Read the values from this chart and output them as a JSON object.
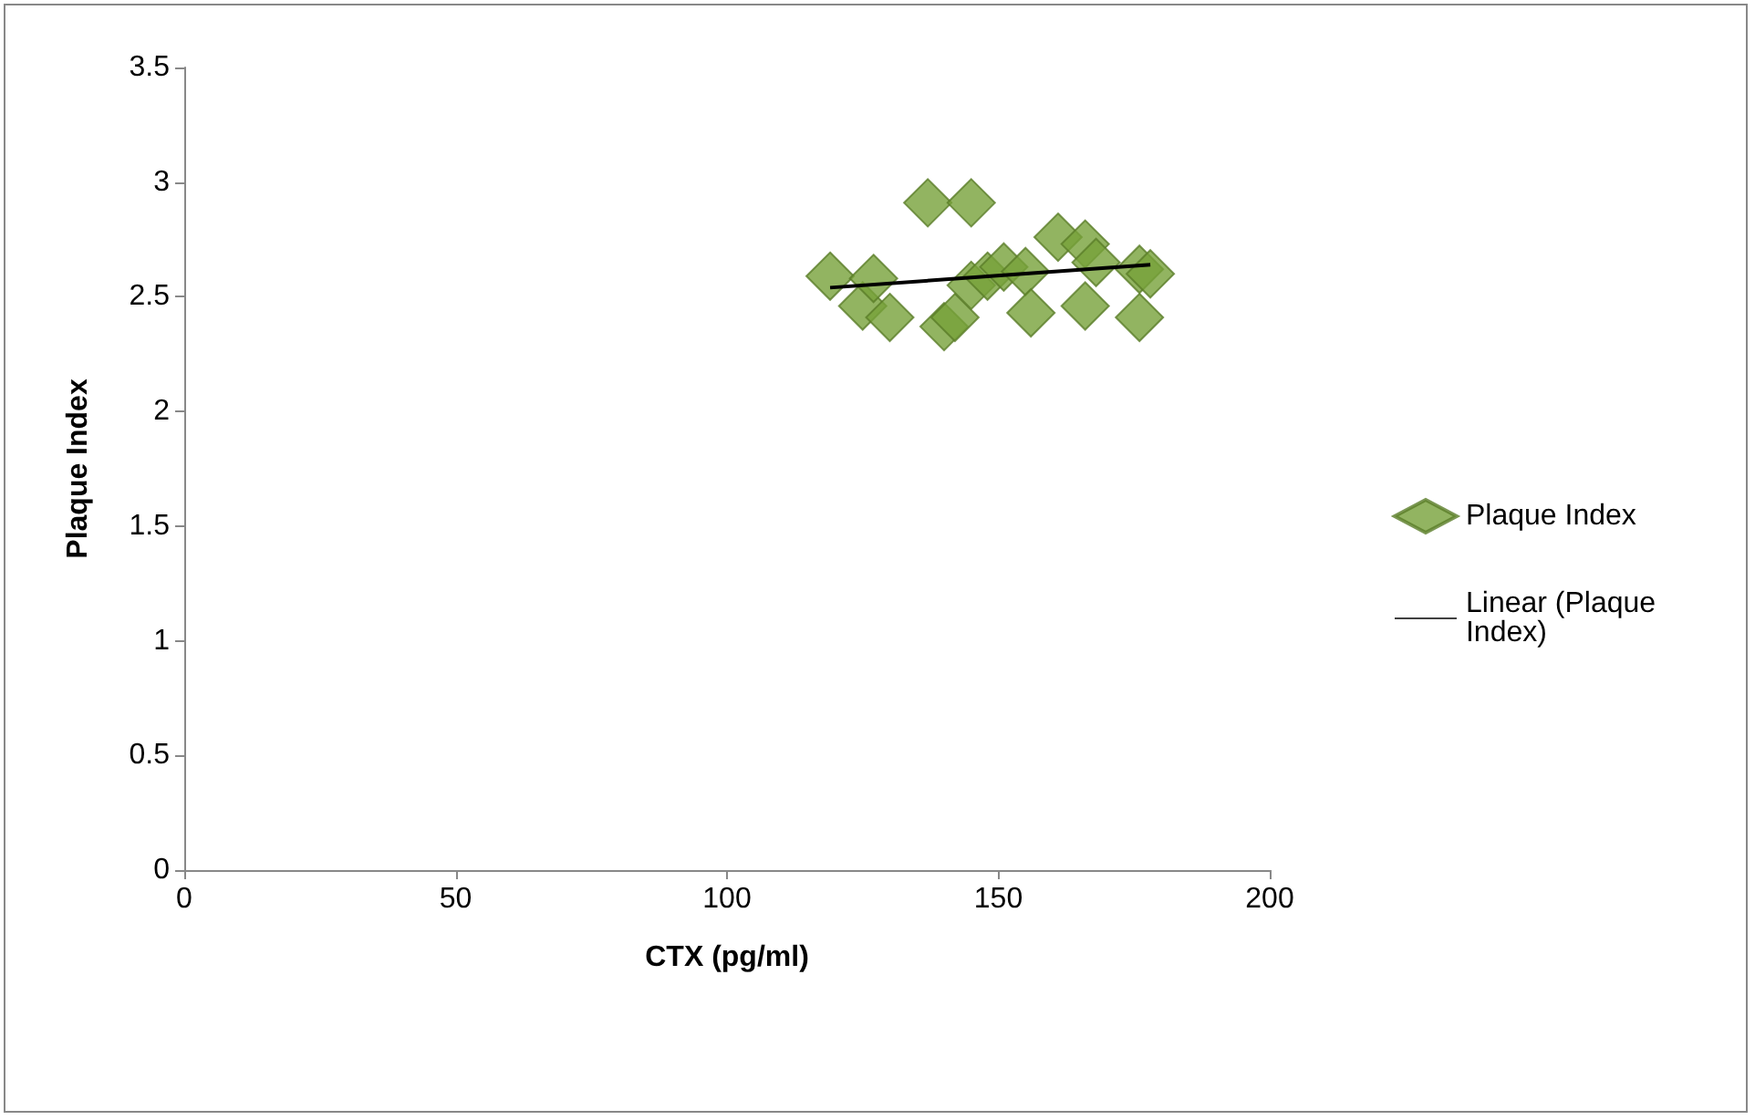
{
  "chart_data": {
    "type": "scatter",
    "xlabel": "CTX (pg/ml)",
    "ylabel": "Plaque Index",
    "xlim": [
      0,
      200
    ],
    "xticks": [
      0,
      50,
      100,
      150,
      200
    ],
    "ylim": [
      0,
      3.5
    ],
    "yticks": [
      0,
      0.5,
      1,
      1.5,
      2,
      2.5,
      3,
      3.5
    ],
    "grid": false,
    "legend": "right",
    "series": [
      {
        "name": "Plaque Index",
        "marker": "diamond",
        "color": "#77a13a",
        "x": [
          119,
          125,
          127,
          130,
          137,
          140,
          142,
          145,
          145,
          148,
          151,
          155,
          156,
          161,
          166,
          166,
          168,
          176,
          176,
          178
        ],
        "values": [
          2.59,
          2.46,
          2.58,
          2.41,
          2.91,
          2.37,
          2.41,
          2.91,
          2.55,
          2.59,
          2.63,
          2.61,
          2.43,
          2.76,
          2.73,
          2.46,
          2.65,
          2.41,
          2.62,
          2.6
        ]
      },
      {
        "name": "Linear (Plaque Index)",
        "type": "line",
        "color": "#000000",
        "marker": "none",
        "x": [
          119,
          178
        ],
        "values": [
          2.54,
          2.64
        ]
      }
    ]
  }
}
